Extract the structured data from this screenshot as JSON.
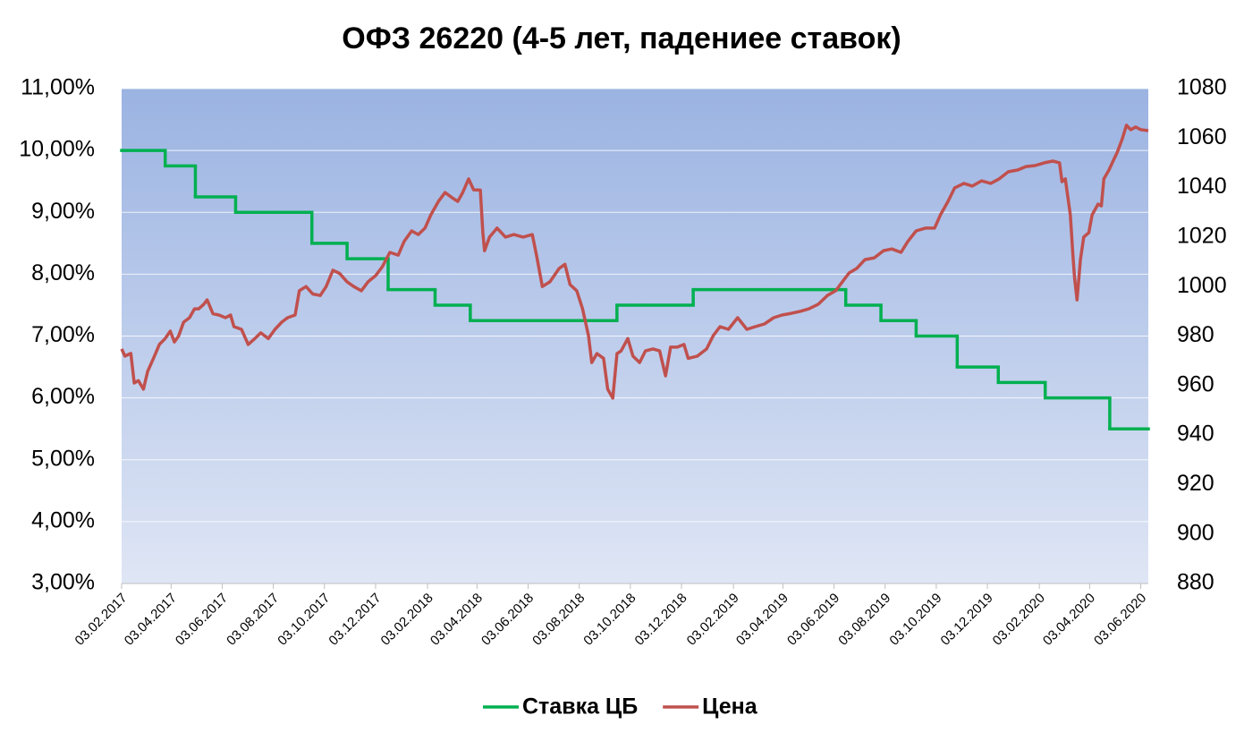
{
  "chart_data": {
    "type": "line",
    "title": "ОФЗ 26220 (4-5 лет, падениее ставок)",
    "xlim": [
      "03.02.2017",
      "12.06.2020"
    ],
    "xticks": [
      "03.02.2017",
      "03.04.2017",
      "03.06.2017",
      "03.08.2017",
      "03.10.2017",
      "03.12.2017",
      "03.02.2018",
      "03.04.2018",
      "03.06.2018",
      "03.08.2018",
      "03.10.2018",
      "03.12.2018",
      "03.02.2019",
      "03.04.2019",
      "03.06.2019",
      "03.08.2019",
      "03.10.2019",
      "03.12.2019",
      "03.02.2020",
      "03.04.2020",
      "03.06.2020"
    ],
    "ylim": [
      3,
      11
    ],
    "yticks": [
      {
        "value": 3,
        "label": "3,00%"
      },
      {
        "value": 4,
        "label": "4,00%"
      },
      {
        "value": 5,
        "label": "5,00%"
      },
      {
        "value": 6,
        "label": "6,00%"
      },
      {
        "value": 7,
        "label": "7,00%"
      },
      {
        "value": 8,
        "label": "8,00%"
      },
      {
        "value": 9,
        "label": "9,00%"
      },
      {
        "value": 10,
        "label": "10,00%"
      },
      {
        "value": 11,
        "label": "11,00%"
      }
    ],
    "y2lim": [
      880,
      1080
    ],
    "y2ticks": [
      880,
      900,
      920,
      940,
      960,
      980,
      1000,
      1020,
      1040,
      1060,
      1080
    ],
    "grid": true,
    "legend": "bottom",
    "series": [
      {
        "name": "Ставка ЦБ",
        "color": "#00b050",
        "step": "post",
        "x": [
          "03.02.2017",
          "27.03.2017",
          "02.05.2017",
          "19.06.2017",
          "18.09.2017",
          "30.10.2017",
          "18.12.2017",
          "12.02.2018",
          "26.03.2018",
          "17.09.2018",
          "17.12.2018",
          "17.06.2019",
          "29.07.2019",
          "09.09.2019",
          "28.10.2019",
          "16.12.2019",
          "10.02.2020",
          "27.04.2020",
          "12.06.2020"
        ],
        "values": [
          10,
          9.75,
          9.25,
          9,
          8.5,
          8.25,
          7.75,
          7.5,
          7.25,
          7.5,
          7.75,
          7.5,
          7.25,
          7,
          6.5,
          6.25,
          6,
          5.5,
          5.5
        ]
      },
      {
        "name": "Цена",
        "color": "#c0504d",
        "axis": "y2",
        "x": [
          "03.02.2017",
          "07.02.2017",
          "14.02.2017",
          "18.02.2017",
          "23.02.2017",
          "01.03.2017",
          "06.03.2017",
          "13.03.2017",
          "20.03.2017",
          "27.03.2017",
          "02.04.2017",
          "07.04.2017",
          "12.04.2017",
          "18.04.2017",
          "25.04.2017",
          "01.05.2017",
          "06.05.2017",
          "12.05.2017",
          "16.05.2017",
          "23.05.2017",
          "30.05.2017",
          "07.06.2017",
          "13.06.2017",
          "17.06.2017",
          "26.06.2017",
          "04.07.2017",
          "12.07.2017",
          "19.07.2017",
          "28.07.2017",
          "05.08.2017",
          "13.08.2017",
          "20.08.2017",
          "29.08.2017",
          "03.09.2017",
          "11.09.2017",
          "19.09.2017",
          "28.09.2017",
          "05.10.2017",
          "13.10.2017",
          "21.10.2017",
          "30.10.2017",
          "07.11.2017",
          "16.11.2017",
          "24.11.2017",
          "03.12.2017",
          "11.12.2017",
          "20.12.2017",
          "30.12.2017",
          "06.01.2018",
          "15.01.2018",
          "23.01.2018",
          "31.01.2018",
          "07.02.2018",
          "16.02.2018",
          "24.02.2018",
          "04.03.2018",
          "11.03.2018",
          "17.03.2018",
          "24.03.2018",
          "30.03.2018",
          "07.04.2018",
          "10.04.2018",
          "12.04.2018",
          "18.04.2018",
          "27.04.2018",
          "07.05.2018",
          "17.05.2018",
          "28.05.2018",
          "08.06.2018",
          "13.06.2018",
          "20.06.2018",
          "29.06.2018",
          "10.07.2018",
          "17.07.2018",
          "23.07.2018",
          "31.07.2018",
          "07.08.2018",
          "14.08.2018",
          "18.08.2018",
          "24.08.2018",
          "01.09.2018",
          "06.09.2018",
          "12.09.2018",
          "17.09.2018",
          "22.09.2018",
          "30.09.2018",
          "06.10.2018",
          "14.10.2018",
          "21.10.2018",
          "30.10.2018",
          "07.11.2018",
          "14.11.2018",
          "20.11.2018",
          "28.11.2018",
          "06.12.2018",
          "11.12.2018",
          "22.12.2018",
          "02.01.2019",
          "10.01.2019",
          "18.01.2019",
          "28.01.2019",
          "08.02.2019",
          "19.02.2019",
          "01.03.2019",
          "12.03.2019",
          "23.03.2019",
          "02.04.2019",
          "13.04.2019",
          "24.04.2019",
          "04.05.2019",
          "15.05.2019",
          "26.05.2019",
          "05.06.2019",
          "13.06.2019",
          "21.06.2019",
          "30.06.2019",
          "10.07.2019",
          "21.07.2019",
          "01.08.2019",
          "11.08.2019",
          "22.08.2019",
          "30.08.2019",
          "09.09.2019",
          "20.09.2019",
          "01.10.2019",
          "08.10.2019",
          "17.10.2019",
          "25.10.2019",
          "05.11.2019",
          "15.11.2019",
          "26.11.2019",
          "07.12.2019",
          "17.12.2019",
          "28.12.2019",
          "08.01.2020",
          "18.01.2020",
          "29.01.2020",
          "09.02.2020",
          "19.02.2020",
          "27.02.2020",
          "01.03.2020",
          "05.03.2020",
          "11.03.2020",
          "14.03.2020",
          "16.03.2020",
          "19.03.2020",
          "23.03.2020",
          "27.03.2020",
          "02.04.2020",
          "06.04.2020",
          "13.04.2020",
          "17.04.2020",
          "20.04.2020",
          "26.04.2020",
          "01.05.2020",
          "06.05.2020",
          "12.05.2020",
          "17.05.2020",
          "22.05.2020",
          "28.05.2020",
          "03.06.2020",
          "12.06.2020"
        ],
        "values": [
          974.8,
          971.9,
          973,
          961,
          962,
          958.5,
          965.7,
          971,
          976.6,
          979,
          982,
          977.6,
          980,
          985.6,
          987.4,
          991,
          991,
          992.8,
          994.6,
          989,
          988.5,
          987.4,
          988.5,
          983.8,
          982.7,
          976.6,
          979,
          981.3,
          979,
          982.7,
          985.6,
          987.4,
          988.5,
          998.3,
          1000,
          997,
          996.4,
          1000,
          1006.6,
          1005.3,
          1001.9,
          1000,
          998.3,
          1001.9,
          1004.4,
          1008,
          1013.8,
          1012.7,
          1018.2,
          1022.5,
          1021,
          1023.6,
          1029,
          1034.4,
          1038,
          1036,
          1034.4,
          1038,
          1043.5,
          1039.1,
          1039,
          1021.8,
          1014.5,
          1020,
          1023.6,
          1020,
          1021,
          1020,
          1021,
          1012.7,
          1000,
          1001.9,
          1007.3,
          1009,
          1000.8,
          998.3,
          991,
          980.2,
          969.3,
          972.9,
          971,
          958.5,
          954.9,
          972.9,
          974,
          979,
          971.9,
          969.3,
          974,
          974.8,
          974,
          963.9,
          975.5,
          975.5,
          976.6,
          971,
          971.9,
          974.8,
          980.2,
          983.8,
          982.7,
          987.4,
          982.7,
          983.8,
          984.9,
          987.4,
          988.5,
          989.2,
          990,
          991,
          992.8,
          996.4,
          998.3,
          1001.9,
          1005.5,
          1007.3,
          1010.9,
          1011.6,
          1014.5,
          1015.2,
          1013.8,
          1018.2,
          1022.5,
          1023.6,
          1023.6,
          1029,
          1034.4,
          1039.9,
          1041.7,
          1040.6,
          1042.7,
          1041.7,
          1043.5,
          1046.4,
          1047.1,
          1048.5,
          1048.9,
          1050,
          1050.7,
          1050,
          1042.4,
          1043.5,
          1029,
          1012.7,
          1003.7,
          994.6,
          1010.9,
          1020,
          1021.8,
          1029,
          1033.3,
          1032.6,
          1043.5,
          1047.1,
          1050.7,
          1054.3,
          1059.7,
          1065.2,
          1063.4,
          1064.5,
          1063.4,
          1063
        ]
      }
    ]
  }
}
